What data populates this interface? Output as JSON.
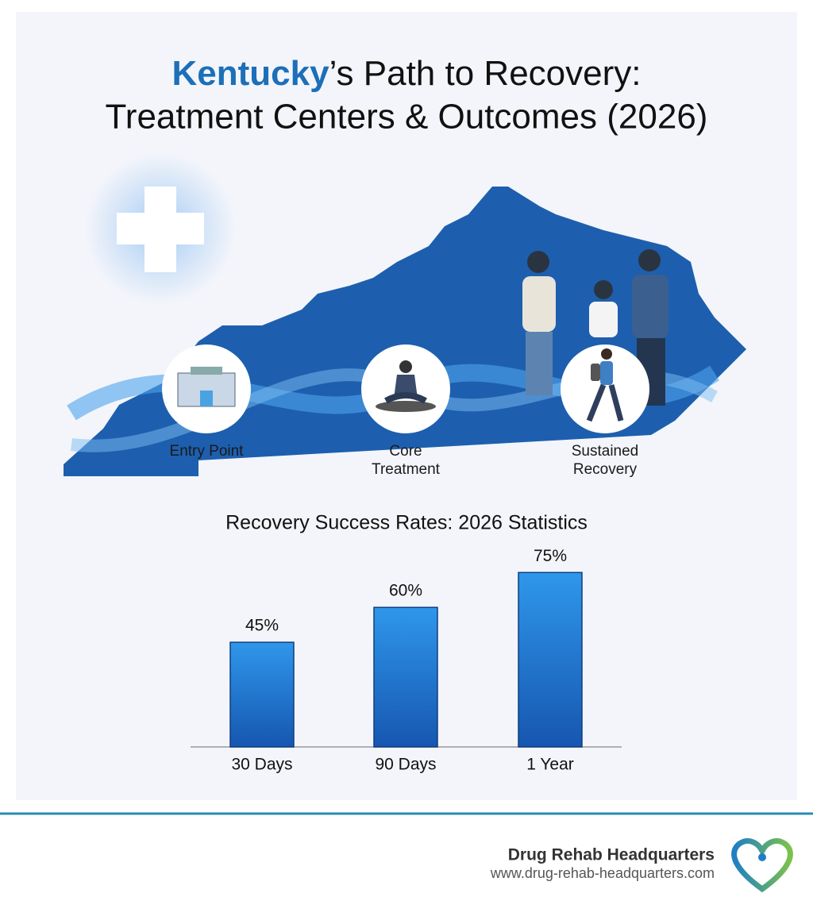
{
  "header": {
    "title_highlight": "Kentucky",
    "title_rest": "’s Path to Recovery:",
    "title_line2": "Treatment Centers & Outcomes (2026)"
  },
  "stages": [
    "Entry Point",
    "Core Treatment",
    "Sustained Recovery"
  ],
  "chart_data": {
    "type": "bar",
    "title": "Recovery Success Rates: 2026 Statistics",
    "categories": [
      "30 Days",
      "90 Days",
      "1 Year"
    ],
    "values": [
      45,
      60,
      75
    ],
    "value_labels": [
      "45%",
      "60%",
      "75%"
    ],
    "color": "#1f78d1"
  },
  "footer": {
    "brand": "Drug Rehab Headquarters",
    "url": "www.drug-rehab-headquarters.com"
  }
}
